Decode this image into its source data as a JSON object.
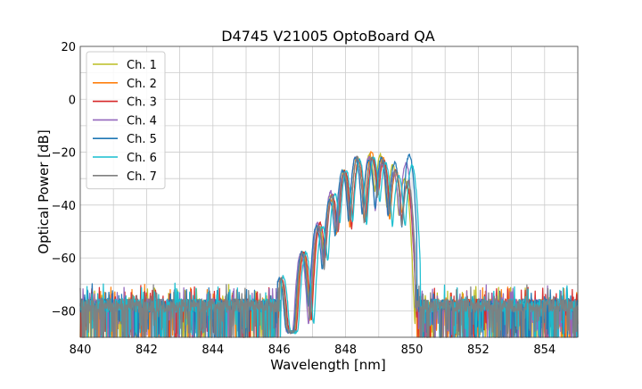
{
  "chart_data": {
    "type": "line",
    "title": "D4745 V21005 OptoBoard QA",
    "xlabel": "Wavelength [nm]",
    "ylabel": "Optical Power [dB]",
    "xlim": [
      840,
      855
    ],
    "ylim": [
      -90,
      20
    ],
    "xticks": [
      840,
      842,
      844,
      846,
      848,
      850,
      852,
      854
    ],
    "yticks": [
      20,
      0,
      -20,
      -40,
      -60,
      -80
    ],
    "xtick_labels": [
      "840",
      "842",
      "844",
      "846",
      "848",
      "850",
      "852",
      "854"
    ],
    "ytick_labels": [
      "20",
      "0",
      "−20",
      "−40",
      "−60",
      "−80"
    ],
    "grid": true,
    "grid_color": "#cccccc",
    "legend_position": "top-left",
    "noise_floor_db": -78,
    "series": [
      {
        "name": "Ch. 1",
        "color": "#bcbd22",
        "peaks": [
          [
            846.05,
            -68
          ],
          [
            846.72,
            -58
          ],
          [
            847.2,
            -48
          ],
          [
            847.58,
            -36
          ],
          [
            847.95,
            -27
          ],
          [
            848.35,
            -22
          ],
          [
            848.72,
            -21
          ],
          [
            849.05,
            -21
          ],
          [
            849.42,
            -25
          ],
          [
            849.78,
            -30
          ]
        ],
        "band": [
          846.0,
          850.1
        ]
      },
      {
        "name": "Ch. 2",
        "color": "#ff7f0e",
        "peaks": [
          [
            846.02,
            -69
          ],
          [
            846.7,
            -58
          ],
          [
            847.18,
            -49
          ],
          [
            847.56,
            -38
          ],
          [
            847.93,
            -28
          ],
          [
            848.35,
            -22
          ],
          [
            848.78,
            -20
          ],
          [
            849.12,
            -22
          ],
          [
            849.52,
            -27
          ],
          [
            849.85,
            -32
          ]
        ],
        "band": [
          846.0,
          850.15
        ]
      },
      {
        "name": "Ch. 3",
        "color": "#d62728",
        "peaks": [
          [
            846.08,
            -68
          ],
          [
            846.75,
            -58
          ],
          [
            847.23,
            -47
          ],
          [
            847.6,
            -36
          ],
          [
            847.98,
            -27
          ],
          [
            848.4,
            -23
          ],
          [
            848.82,
            -22
          ],
          [
            849.15,
            -23
          ],
          [
            849.5,
            -27
          ],
          [
            849.85,
            -33
          ]
        ],
        "band": [
          846.05,
          850.15
        ]
      },
      {
        "name": "Ch. 4",
        "color": "#9467bd",
        "peaks": [
          [
            846.0,
            -68
          ],
          [
            846.65,
            -58
          ],
          [
            847.15,
            -47
          ],
          [
            847.55,
            -35
          ],
          [
            847.92,
            -29
          ],
          [
            848.3,
            -22
          ],
          [
            848.7,
            -22
          ],
          [
            849.08,
            -24
          ],
          [
            849.45,
            -28
          ],
          [
            849.82,
            -24
          ]
        ],
        "band": [
          845.95,
          850.1
        ]
      },
      {
        "name": "Ch. 5",
        "color": "#1f77b4",
        "peaks": [
          [
            846.0,
            -68
          ],
          [
            846.68,
            -58
          ],
          [
            847.12,
            -48
          ],
          [
            847.52,
            -38
          ],
          [
            847.9,
            -27
          ],
          [
            848.3,
            -22
          ],
          [
            848.7,
            -23
          ],
          [
            849.08,
            -22
          ],
          [
            849.48,
            -24
          ],
          [
            849.92,
            -21
          ]
        ],
        "band": [
          845.95,
          850.15
        ]
      },
      {
        "name": "Ch. 6",
        "color": "#17becf",
        "peaks": [
          [
            846.12,
            -67
          ],
          [
            846.8,
            -58
          ],
          [
            847.3,
            -48
          ],
          [
            847.68,
            -36
          ],
          [
            848.02,
            -27
          ],
          [
            848.42,
            -23
          ],
          [
            848.85,
            -22
          ],
          [
            849.2,
            -24
          ],
          [
            849.6,
            -29
          ],
          [
            850.0,
            -25
          ]
        ],
        "band": [
          846.05,
          850.25
        ]
      },
      {
        "name": "Ch. 7",
        "color": "#7f7f7f",
        "peaks": [
          [
            846.05,
            -68
          ],
          [
            846.7,
            -58
          ],
          [
            847.18,
            -48
          ],
          [
            847.58,
            -37
          ],
          [
            847.95,
            -28
          ],
          [
            848.35,
            -22
          ],
          [
            848.78,
            -22
          ],
          [
            849.12,
            -23
          ],
          [
            849.5,
            -27
          ],
          [
            849.88,
            -31
          ]
        ],
        "band": [
          846.0,
          850.1
        ]
      }
    ]
  }
}
